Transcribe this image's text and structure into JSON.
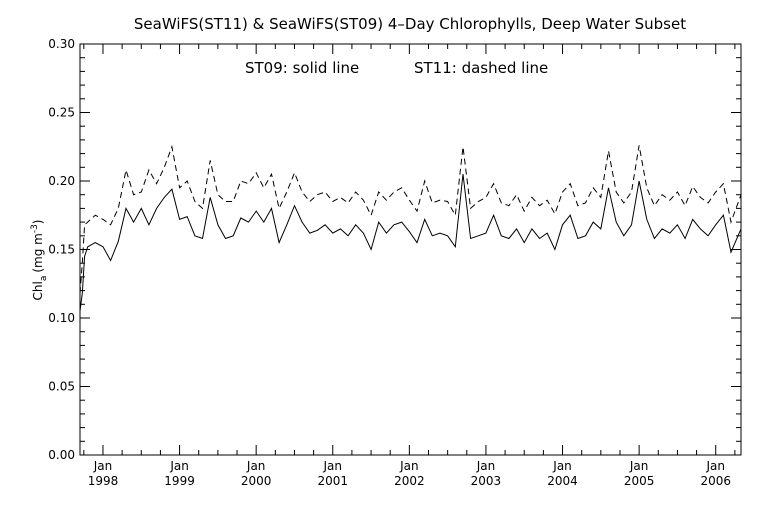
{
  "chart_data": {
    "type": "line",
    "title": "SeaWiFS(ST11) & SeaWiFS(ST09) 4–Day Chlorophylls, Deep Water Subset",
    "annotation_left": "ST09: solid line",
    "annotation_right": "ST11: dashed line",
    "ylabel": {
      "main": "Chl",
      "sub": "a",
      "unit_open": "(mg m",
      "unit_exp": "-3",
      "unit_close": ")"
    },
    "ylim": [
      0.0,
      0.3
    ],
    "yticks": [
      "0.00",
      "0.05",
      "0.10",
      "0.15",
      "0.20",
      "0.25",
      "0.30"
    ],
    "xlim": [
      1997.7,
      2006.33
    ],
    "xticks": [
      {
        "month": "Jan",
        "year": "1998",
        "value": 1998
      },
      {
        "month": "Jan",
        "year": "1999",
        "value": 1999
      },
      {
        "month": "Jan",
        "year": "2000",
        "value": 2000
      },
      {
        "month": "Jan",
        "year": "2001",
        "value": 2001
      },
      {
        "month": "Jan",
        "year": "2002",
        "value": 2002
      },
      {
        "month": "Jan",
        "year": "2003",
        "value": 2003
      },
      {
        "month": "Jan",
        "year": "2004",
        "value": 2004
      },
      {
        "month": "Jan",
        "year": "2005",
        "value": 2005
      },
      {
        "month": "Jan",
        "year": "2006",
        "value": 2006
      }
    ],
    "grid": false,
    "series": [
      {
        "name": "ST09",
        "style": "solid",
        "x": [
          1997.7,
          1997.73,
          1997.76,
          1997.8,
          1997.9,
          1998.0,
          1998.1,
          1998.2,
          1998.3,
          1998.4,
          1998.5,
          1998.6,
          1998.7,
          1998.8,
          1998.9,
          1999.0,
          1999.1,
          1999.2,
          1999.3,
          1999.4,
          1999.5,
          1999.6,
          1999.7,
          1999.8,
          1999.9,
          2000.0,
          2000.1,
          2000.2,
          2000.3,
          2000.4,
          2000.5,
          2000.6,
          2000.7,
          2000.8,
          2000.9,
          2001.0,
          2001.1,
          2001.2,
          2001.3,
          2001.4,
          2001.5,
          2001.6,
          2001.7,
          2001.8,
          2001.9,
          2002.0,
          2002.1,
          2002.2,
          2002.3,
          2002.4,
          2002.5,
          2002.6,
          2002.7,
          2002.8,
          2002.9,
          2003.0,
          2003.1,
          2003.2,
          2003.3,
          2003.4,
          2003.5,
          2003.6,
          2003.7,
          2003.8,
          2003.9,
          2004.0,
          2004.1,
          2004.2,
          2004.3,
          2004.4,
          2004.5,
          2004.6,
          2004.7,
          2004.8,
          2004.9,
          2005.0,
          2005.1,
          2005.2,
          2005.3,
          2005.4,
          2005.5,
          2005.6,
          2005.7,
          2005.8,
          2005.9,
          2006.0,
          2006.1,
          2006.2,
          2006.33
        ],
        "values": [
          0.105,
          0.118,
          0.145,
          0.152,
          0.155,
          0.152,
          0.142,
          0.156,
          0.18,
          0.17,
          0.18,
          0.168,
          0.18,
          0.188,
          0.194,
          0.172,
          0.174,
          0.16,
          0.158,
          0.188,
          0.168,
          0.158,
          0.16,
          0.173,
          0.17,
          0.178,
          0.17,
          0.18,
          0.155,
          0.168,
          0.182,
          0.17,
          0.162,
          0.164,
          0.168,
          0.162,
          0.165,
          0.16,
          0.168,
          0.162,
          0.15,
          0.17,
          0.162,
          0.168,
          0.17,
          0.163,
          0.155,
          0.172,
          0.16,
          0.162,
          0.16,
          0.152,
          0.205,
          0.158,
          0.16,
          0.162,
          0.175,
          0.16,
          0.158,
          0.165,
          0.155,
          0.165,
          0.158,
          0.162,
          0.15,
          0.168,
          0.175,
          0.158,
          0.16,
          0.17,
          0.165,
          0.195,
          0.17,
          0.16,
          0.168,
          0.2,
          0.172,
          0.158,
          0.165,
          0.162,
          0.168,
          0.158,
          0.172,
          0.165,
          0.16,
          0.168,
          0.175,
          0.148,
          0.165
        ]
      },
      {
        "name": "ST11",
        "style": "dashed",
        "x": [
          1997.7,
          1997.73,
          1997.76,
          1997.8,
          1997.9,
          1998.0,
          1998.1,
          1998.2,
          1998.3,
          1998.4,
          1998.5,
          1998.6,
          1998.7,
          1998.8,
          1998.9,
          1999.0,
          1999.1,
          1999.2,
          1999.3,
          1999.4,
          1999.5,
          1999.6,
          1999.7,
          1999.8,
          1999.9,
          2000.0,
          2000.1,
          2000.2,
          2000.3,
          2000.4,
          2000.5,
          2000.6,
          2000.7,
          2000.8,
          2000.9,
          2001.0,
          2001.1,
          2001.2,
          2001.3,
          2001.4,
          2001.5,
          2001.6,
          2001.7,
          2001.8,
          2001.9,
          2002.0,
          2002.1,
          2002.2,
          2002.3,
          2002.4,
          2002.5,
          2002.6,
          2002.7,
          2002.8,
          2002.9,
          2003.0,
          2003.1,
          2003.2,
          2003.3,
          2003.4,
          2003.5,
          2003.6,
          2003.7,
          2003.8,
          2003.9,
          2004.0,
          2004.1,
          2004.2,
          2004.3,
          2004.4,
          2004.5,
          2004.6,
          2004.7,
          2004.8,
          2004.9,
          2005.0,
          2005.1,
          2005.2,
          2005.3,
          2005.4,
          2005.5,
          2005.6,
          2005.7,
          2005.8,
          2005.9,
          2006.0,
          2006.1,
          2006.2,
          2006.33
        ],
        "values": [
          0.118,
          0.14,
          0.168,
          0.17,
          0.175,
          0.172,
          0.168,
          0.18,
          0.208,
          0.19,
          0.192,
          0.208,
          0.198,
          0.21,
          0.225,
          0.195,
          0.2,
          0.185,
          0.18,
          0.215,
          0.19,
          0.185,
          0.185,
          0.2,
          0.198,
          0.206,
          0.195,
          0.205,
          0.18,
          0.192,
          0.206,
          0.192,
          0.185,
          0.19,
          0.192,
          0.185,
          0.188,
          0.184,
          0.192,
          0.186,
          0.175,
          0.192,
          0.186,
          0.192,
          0.195,
          0.186,
          0.178,
          0.2,
          0.184,
          0.186,
          0.185,
          0.175,
          0.225,
          0.18,
          0.185,
          0.188,
          0.198,
          0.184,
          0.182,
          0.19,
          0.178,
          0.188,
          0.182,
          0.186,
          0.176,
          0.192,
          0.198,
          0.182,
          0.184,
          0.195,
          0.188,
          0.222,
          0.192,
          0.184,
          0.192,
          0.226,
          0.195,
          0.182,
          0.19,
          0.186,
          0.192,
          0.182,
          0.196,
          0.188,
          0.184,
          0.192,
          0.198,
          0.17,
          0.19
        ]
      }
    ]
  }
}
